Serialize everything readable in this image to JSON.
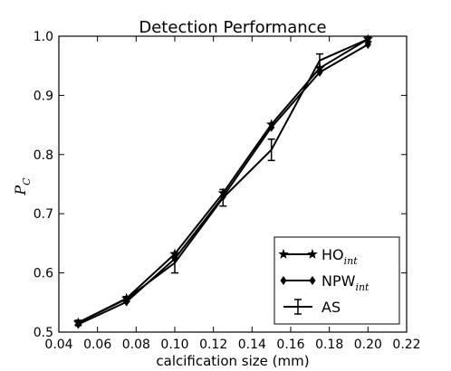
{
  "chart_data": {
    "type": "line",
    "title": "Detection Performance",
    "xlabel": "calcification size (mm)",
    "ylabel": {
      "main": "P",
      "sub": "C"
    },
    "xlim": [
      0.04,
      0.22
    ],
    "ylim": [
      0.5,
      1.0
    ],
    "x_ticks": [
      0.04,
      0.06,
      0.08,
      0.1,
      0.12,
      0.14,
      0.16,
      0.18,
      0.2,
      0.22
    ],
    "x_tick_labels": [
      "0.04",
      "0.06",
      "0.08",
      "0.10",
      "0.12",
      "0.14",
      "0.16",
      "0.18",
      "0.20",
      "0.22"
    ],
    "y_ticks": [
      0.5,
      0.6,
      0.7,
      0.8,
      0.9,
      1.0
    ],
    "y_tick_labels": [
      "0.5",
      "0.6",
      "0.7",
      "0.8",
      "0.9",
      "1.0"
    ],
    "grid": false,
    "legend_position": "lower-right",
    "series": [
      {
        "name": "HO",
        "name_sub": "int",
        "marker": "star",
        "x": [
          0.05,
          0.075,
          0.1,
          0.125,
          0.15,
          0.175,
          0.2
        ],
        "y": [
          0.516,
          0.557,
          0.632,
          0.735,
          0.851,
          0.946,
          0.995
        ]
      },
      {
        "name": "NPW",
        "name_sub": "int",
        "marker": "diamond",
        "x": [
          0.05,
          0.075,
          0.1,
          0.125,
          0.15,
          0.175,
          0.2
        ],
        "y": [
          0.513,
          0.551,
          0.624,
          0.729,
          0.846,
          0.939,
          0.986
        ]
      },
      {
        "name": "AS",
        "marker": "errorbar",
        "x": [
          0.05,
          0.075,
          0.1,
          0.125,
          0.15,
          0.175,
          0.2
        ],
        "y": [
          0.516,
          0.556,
          0.617,
          0.727,
          0.808,
          0.959,
          0.995
        ],
        "err": [
          0.004,
          0.004,
          0.017,
          0.014,
          0.018,
          0.011,
          0.004
        ]
      }
    ]
  },
  "colors": {
    "line": "#000000",
    "background": "#ffffff"
  }
}
